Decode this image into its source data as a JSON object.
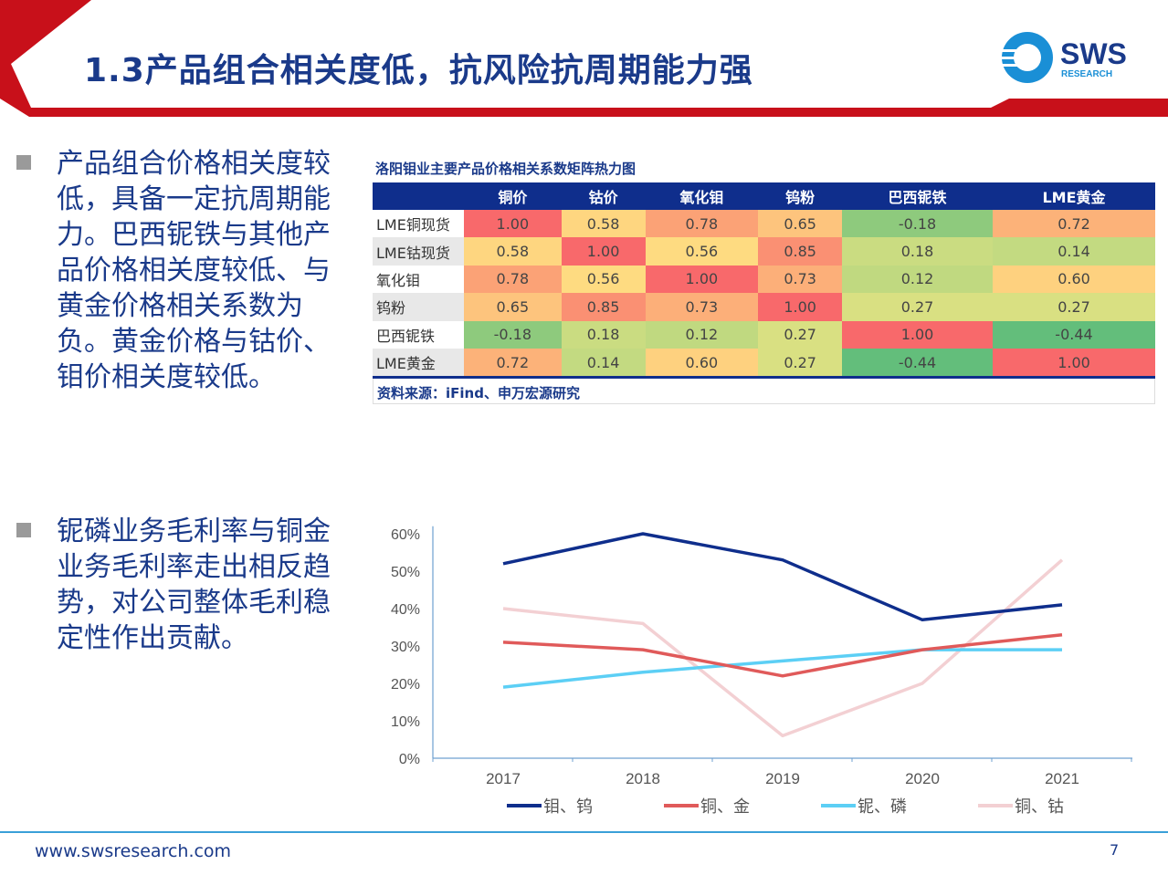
{
  "header": {
    "title": "1.3产品组合相关度低，抗风险抗周期能力强",
    "logo_text": "SWS",
    "logo_sub": "RESEARCH",
    "brand_red": "#c8101a",
    "brand_blue": "#1a3a8a"
  },
  "bullets": [
    {
      "text": "产品组合价格相关度较低，具备一定抗周期能力。巴西铌铁与其他产品价格相关度较低、与黄金价格相关系数为负。黄金价格与钴价、钼价相关度较低。"
    },
    {
      "text": "铌磷业务毛利率与铜金业务毛利率走出相反趋势，对公司整体毛利稳定性作出贡献。"
    }
  ],
  "chart_data": [
    {
      "type": "heatmap",
      "title": "洛阳钼业主要产品价格相关系数矩阵热力图",
      "columns": [
        "铜价",
        "钴价",
        "氧化钼",
        "钨粉",
        "巴西铌铁",
        "LME黄金"
      ],
      "rows": [
        "LME铜现货",
        "LME钴现货",
        "氧化钼",
        "钨粉",
        "巴西铌铁",
        "LME黄金"
      ],
      "values": [
        [
          "1.00",
          "0.58",
          "0.78",
          "0.65",
          "-0.18",
          "0.72"
        ],
        [
          "0.58",
          "1.00",
          "0.56",
          "0.85",
          "0.18",
          "0.14"
        ],
        [
          "0.78",
          "0.56",
          "1.00",
          "0.73",
          "0.12",
          "0.60"
        ],
        [
          "0.65",
          "0.85",
          "0.73",
          "1.00",
          "0.27",
          "0.27"
        ],
        [
          "-0.18",
          "0.18",
          "0.12",
          "0.27",
          "1.00",
          "-0.44"
        ],
        [
          "0.72",
          "0.14",
          "0.60",
          "0.27",
          "-0.44",
          "1.00"
        ]
      ],
      "color_scale": {
        "low": "#63be7b",
        "mid": "#ffeb84",
        "high": "#f8696b"
      },
      "source": "资料来源：iFind、申万宏源研究"
    },
    {
      "type": "line",
      "categories": [
        "2017",
        "2018",
        "2019",
        "2020",
        "2021"
      ],
      "yticks": [
        "0%",
        "10%",
        "20%",
        "30%",
        "40%",
        "50%",
        "60%"
      ],
      "ylim": [
        0,
        60
      ],
      "legend": "bottom",
      "series": [
        {
          "name": "钼、钨",
          "values": [
            52,
            60,
            53,
            37,
            41
          ],
          "color": "#0f2e8c"
        },
        {
          "name": "铜、金",
          "values": [
            31,
            29,
            22,
            29,
            33
          ],
          "color": "#e05a5a"
        },
        {
          "name": "铌、磷",
          "values": [
            19,
            23,
            26,
            29,
            29
          ],
          "color": "#5ccff5"
        },
        {
          "name": "铜、钴",
          "values": [
            40,
            36,
            6,
            20,
            53
          ],
          "color": "#f3d0d3"
        }
      ]
    }
  ],
  "footer": {
    "url": "www.swsresearch.com",
    "page": "7"
  }
}
